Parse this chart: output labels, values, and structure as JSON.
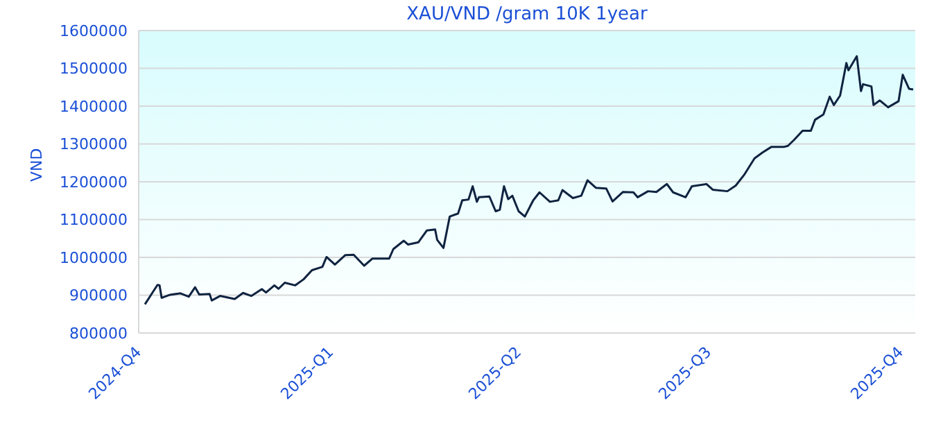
{
  "chart_data": {
    "type": "line",
    "title": "XAU/VND /gram 10K 1year",
    "ylabel": "VND",
    "x": [
      "2024-10-04",
      "2024-10-08",
      "2024-10-10",
      "2024-10-11",
      "2024-10-12",
      "2024-10-16",
      "2024-10-21",
      "2024-10-25",
      "2024-10-28",
      "2024-10-30",
      "2024-11-04",
      "2024-11-05",
      "2024-11-09",
      "2024-11-16",
      "2024-11-20",
      "2024-11-24",
      "2024-11-29",
      "2024-12-01",
      "2024-12-05",
      "2024-12-07",
      "2024-12-10",
      "2024-12-15",
      "2024-12-19",
      "2024-12-23",
      "2024-12-28",
      "2024-12-30",
      "2025-01-03",
      "2025-01-08",
      "2025-01-12",
      "2025-01-17",
      "2025-01-21",
      "2025-01-29",
      "2025-01-31",
      "2025-02-05",
      "2025-02-07",
      "2025-02-12",
      "2025-02-16",
      "2025-02-20",
      "2025-02-21",
      "2025-02-24",
      "2025-02-27",
      "2025-03-03",
      "2025-03-05",
      "2025-03-08",
      "2025-03-10",
      "2025-03-12",
      "2025-03-13",
      "2025-03-18",
      "2025-03-21",
      "2025-03-23",
      "2025-03-25",
      "2025-03-27",
      "2025-03-29",
      "2025-04-01",
      "2025-04-04",
      "2025-04-08",
      "2025-04-11",
      "2025-04-16",
      "2025-04-20",
      "2025-04-22",
      "2025-04-27",
      "2025-05-01",
      "2025-05-04",
      "2025-05-08",
      "2025-05-13",
      "2025-05-16",
      "2025-05-21",
      "2025-05-26",
      "2025-05-28",
      "2025-06-02",
      "2025-06-06",
      "2025-06-11",
      "2025-06-14",
      "2025-06-20",
      "2025-06-23",
      "2025-06-30",
      "2025-07-03",
      "2025-07-10",
      "2025-07-14",
      "2025-07-18",
      "2025-07-23",
      "2025-07-27",
      "2025-07-31",
      "2025-08-06",
      "2025-08-08",
      "2025-08-11",
      "2025-08-15",
      "2025-08-19",
      "2025-08-21",
      "2025-08-25",
      "2025-08-28",
      "2025-08-30",
      "2025-09-02",
      "2025-09-05",
      "2025-09-06",
      "2025-09-10",
      "2025-09-12",
      "2025-09-13",
      "2025-09-17",
      "2025-09-18",
      "2025-09-21",
      "2025-09-25",
      "2025-09-30",
      "2025-10-02",
      "2025-10-05",
      "2025-10-07"
    ],
    "series": [
      {
        "color": "#0f2340",
        "values": [
          876000,
          910000,
          927000,
          926000,
          893000,
          901000,
          905000,
          896000,
          921000,
          902000,
          903000,
          886000,
          898000,
          890000,
          906000,
          898000,
          916000,
          907000,
          926000,
          917000,
          933000,
          926000,
          942000,
          966000,
          975000,
          1001000,
          981000,
          1006000,
          1007000,
          978000,
          997000,
          997000,
          1022000,
          1044000,
          1034000,
          1040000,
          1071000,
          1074000,
          1046000,
          1025000,
          1108000,
          1116000,
          1151000,
          1153000,
          1188000,
          1147000,
          1159000,
          1161000,
          1122000,
          1126000,
          1188000,
          1154000,
          1163000,
          1122000,
          1108000,
          1151000,
          1172000,
          1147000,
          1151000,
          1178000,
          1157000,
          1163000,
          1204000,
          1184000,
          1182000,
          1148000,
          1173000,
          1172000,
          1159000,
          1175000,
          1173000,
          1194000,
          1172000,
          1159000,
          1188000,
          1194000,
          1179000,
          1175000,
          1190000,
          1218000,
          1262000,
          1278000,
          1292000,
          1292000,
          1295000,
          1311000,
          1335000,
          1335000,
          1364000,
          1378000,
          1425000,
          1403000,
          1428000,
          1514000,
          1495000,
          1532000,
          1440000,
          1458000,
          1452000,
          1403000,
          1415000,
          1397000,
          1413000,
          1483000,
          1446000,
          1444000
        ]
      }
    ],
    "xlim": [
      "2024-10-01",
      "2025-10-08"
    ],
    "xticks": [
      {
        "value": "2024-10-01",
        "label": "2024-Q4"
      },
      {
        "value": "2025-01-01",
        "label": "2025-Q1"
      },
      {
        "value": "2025-04-01",
        "label": "2025-Q2"
      },
      {
        "value": "2025-07-01",
        "label": "2025-Q3"
      },
      {
        "value": "2025-10-01",
        "label": "2025-Q4"
      }
    ],
    "ylim": [
      800000,
      1600000
    ],
    "yticks": [
      800000,
      900000,
      1000000,
      1100000,
      1200000,
      1300000,
      1400000,
      1500000,
      1600000
    ],
    "grid": "y",
    "marker": "none",
    "line_style": "solid",
    "legend": false
  }
}
